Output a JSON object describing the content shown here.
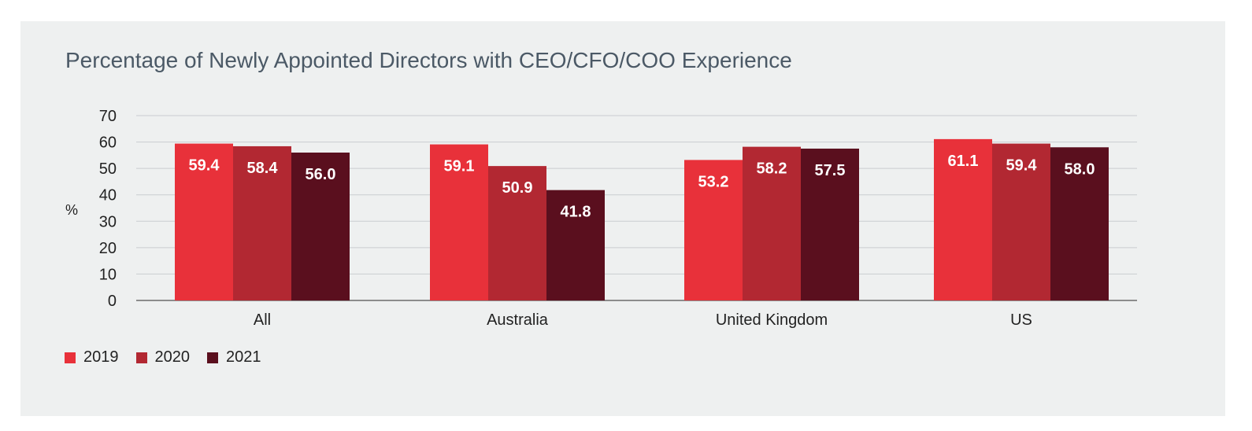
{
  "chart_data": {
    "type": "bar",
    "title": "Percentage of Newly Appointed Directors with CEO/CFO/COO Experience",
    "ylabel": "%",
    "xlabel": "",
    "ylim": [
      0,
      70
    ],
    "yticks": [
      0,
      10,
      20,
      30,
      40,
      50,
      60,
      70
    ],
    "categories": [
      "All",
      "Australia",
      "United Kingdom",
      "US"
    ],
    "series": [
      {
        "name": "2019",
        "values": [
          59.4,
          59.1,
          53.2,
          61.1
        ],
        "labels": [
          "59.4",
          "59.1",
          "53.2",
          "61.1"
        ],
        "color": "#e8313a"
      },
      {
        "name": "2020",
        "values": [
          58.4,
          50.9,
          58.2,
          59.4
        ],
        "labels": [
          "58.4",
          "50.9",
          "58.2",
          "59.4"
        ],
        "color": "#b22832"
      },
      {
        "name": "2021",
        "values": [
          56.0,
          41.8,
          57.5,
          58.0
        ],
        "labels": [
          "56.0",
          "41.8",
          "57.5",
          "58.0"
        ],
        "color": "#5a0f1e"
      }
    ],
    "grid": true,
    "legend_position": "bottom-left"
  }
}
